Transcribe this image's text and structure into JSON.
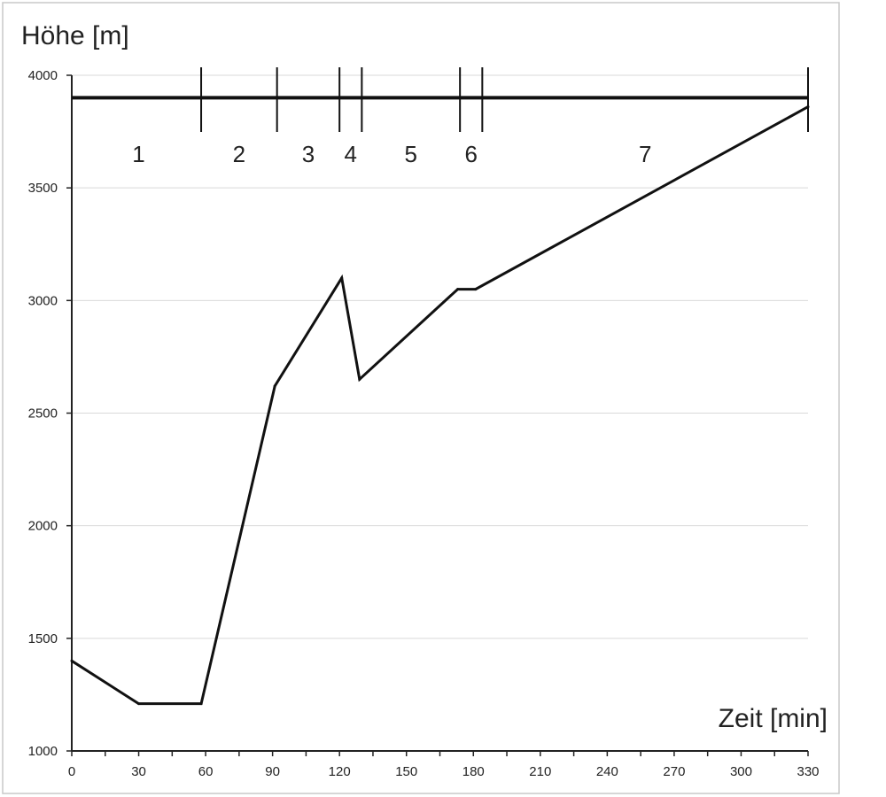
{
  "chart_data": {
    "type": "line",
    "ylabel": "Höhe [m]",
    "xlabel": "Zeit [min]",
    "xlim": [
      0,
      330
    ],
    "ylim": [
      1000,
      4000
    ],
    "x_ticks": [
      "0",
      "30",
      "60",
      "90",
      "120",
      "150",
      "180",
      "210",
      "240",
      "270",
      "300",
      "330"
    ],
    "y_ticks": [
      "1000",
      "1500",
      "2000",
      "2500",
      "3000",
      "3500",
      "4000"
    ],
    "grid": "horizontal",
    "series": [
      {
        "x": [
          0,
          30,
          58,
          91,
          121,
          129,
          173,
          181,
          330
        ],
        "y": [
          1400,
          1210,
          1210,
          2620,
          3100,
          2650,
          3050,
          3050,
          3860
        ]
      }
    ],
    "reference_line": {
      "y": 3900
    },
    "segment_boundaries": [
      58,
      92,
      120,
      130,
      174,
      184,
      330
    ],
    "segments": [
      {
        "label": "1",
        "x": 30
      },
      {
        "label": "2",
        "x": 75
      },
      {
        "label": "3",
        "x": 106
      },
      {
        "label": "4",
        "x": 125
      },
      {
        "label": "5",
        "x": 152
      },
      {
        "label": "6",
        "x": 179
      },
      {
        "label": "7",
        "x": 257
      }
    ]
  }
}
